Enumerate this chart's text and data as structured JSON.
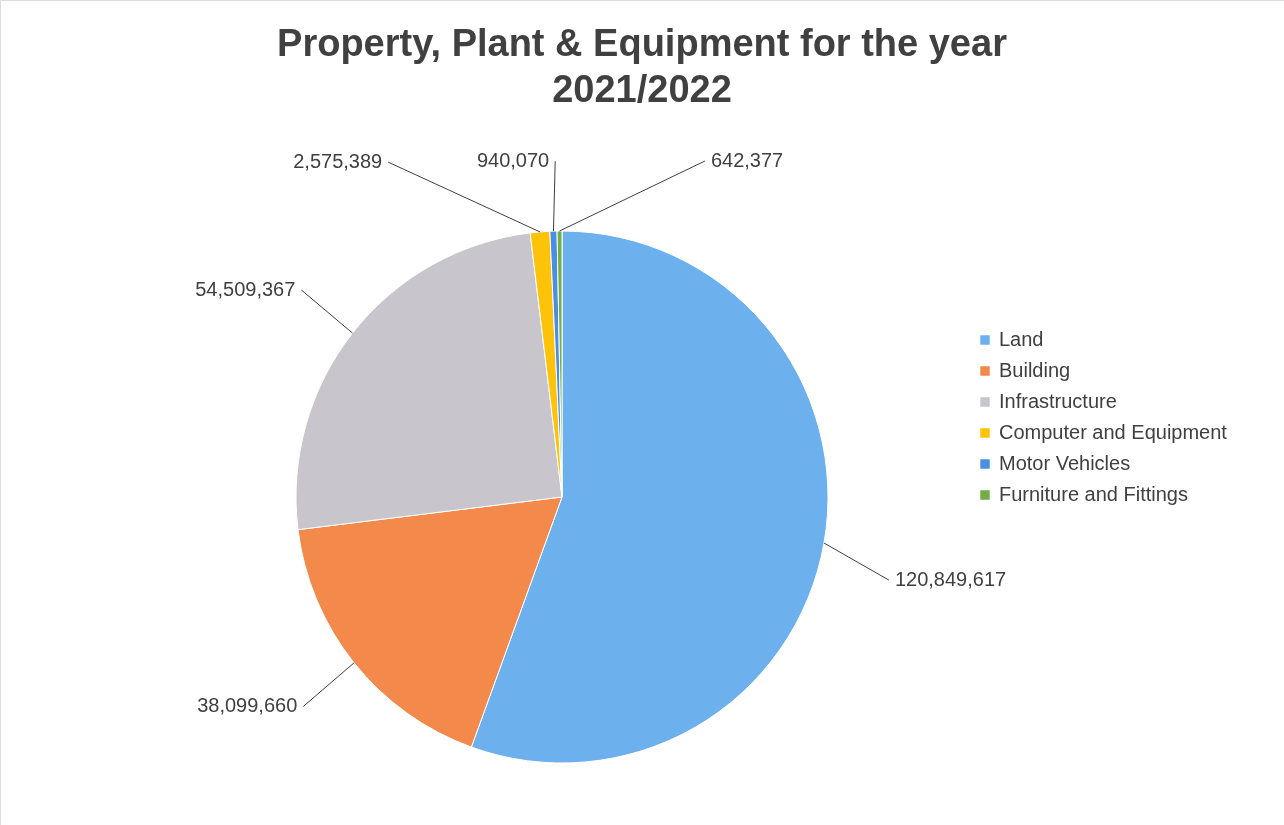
{
  "chart_data": {
    "type": "pie",
    "title": "Property, Plant & Equipment for the year 2021/2022",
    "categories": [
      "Land",
      "Building",
      "Infrastructure",
      "Computer and Equipment",
      "Motor Vehicles",
      "Furniture and Fittings"
    ],
    "values": [
      120849617,
      38099660,
      54509367,
      2575389,
      940070,
      642377
    ],
    "colors": [
      "#6cb0ee",
      "#f4894c",
      "#c8c6cc",
      "#fdc20a",
      "#4a8fe2",
      "#72ad4a"
    ],
    "value_labels": [
      "120,849,617",
      "38,099,660",
      "54,509,367",
      "2,575,389",
      "940,070",
      "642,377"
    ],
    "legend": "right"
  }
}
